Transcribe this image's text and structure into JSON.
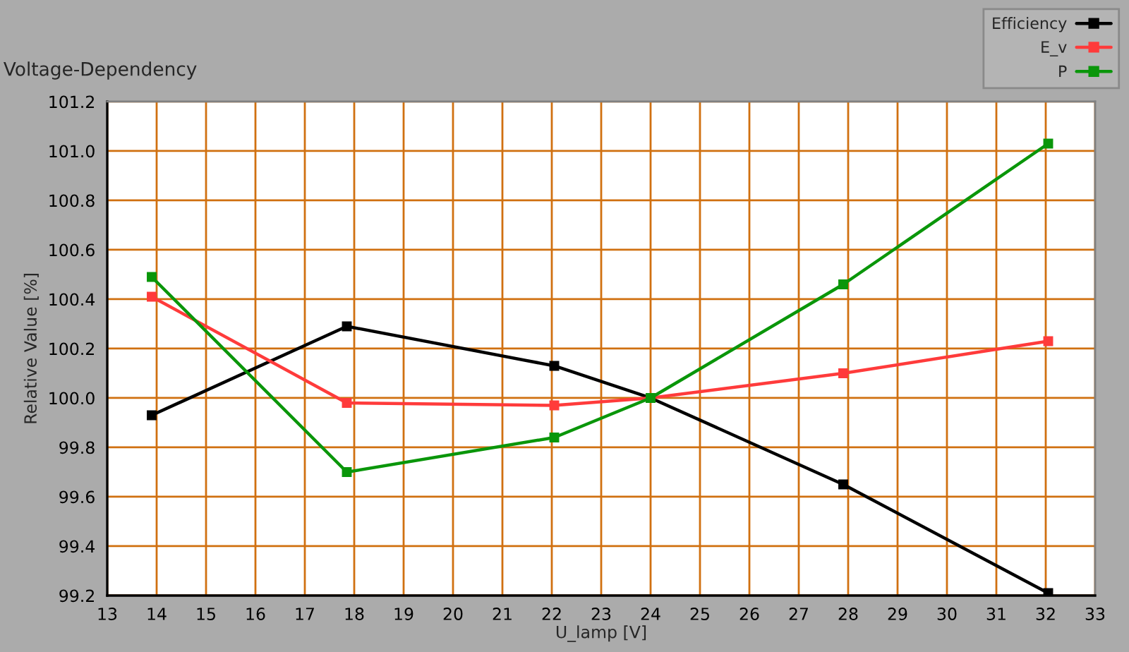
{
  "chart_data": {
    "type": "line",
    "title": "Voltage-Dependency",
    "xlabel": "U_lamp [V]",
    "ylabel": "Relative Value [%]",
    "x": [
      13.9,
      17.85,
      22.05,
      24,
      27.9,
      32.05
    ],
    "series": [
      {
        "name": "Efficiency",
        "color": "#000000",
        "values": [
          99.93,
          100.29,
          100.13,
          100.0,
          99.65,
          99.21
        ]
      },
      {
        "name": "E_v",
        "color": "#ff3b3b",
        "values": [
          100.41,
          99.98,
          99.97,
          100.0,
          100.1,
          100.23
        ]
      },
      {
        "name": "P",
        "color": "#0a960a",
        "values": [
          100.49,
          99.7,
          99.84,
          100.0,
          100.46,
          101.03
        ]
      }
    ],
    "xlim": [
      13,
      33
    ],
    "xticks": [
      13,
      14,
      15,
      16,
      17,
      18,
      19,
      20,
      21,
      22,
      23,
      24,
      25,
      26,
      27,
      28,
      29,
      30,
      31,
      32,
      33
    ],
    "ylim": [
      99.2,
      101.2
    ],
    "yticks": [
      99.2,
      99.4,
      99.6,
      99.8,
      {
        "value": 100,
        "label": "100.0"
      },
      100.2,
      100.4,
      100.6,
      100.8,
      {
        "value": 101,
        "label": "101.0"
      },
      101.2
    ],
    "grid": true,
    "legend": "top right",
    "marker": "square",
    "line_style": "solid"
  }
}
